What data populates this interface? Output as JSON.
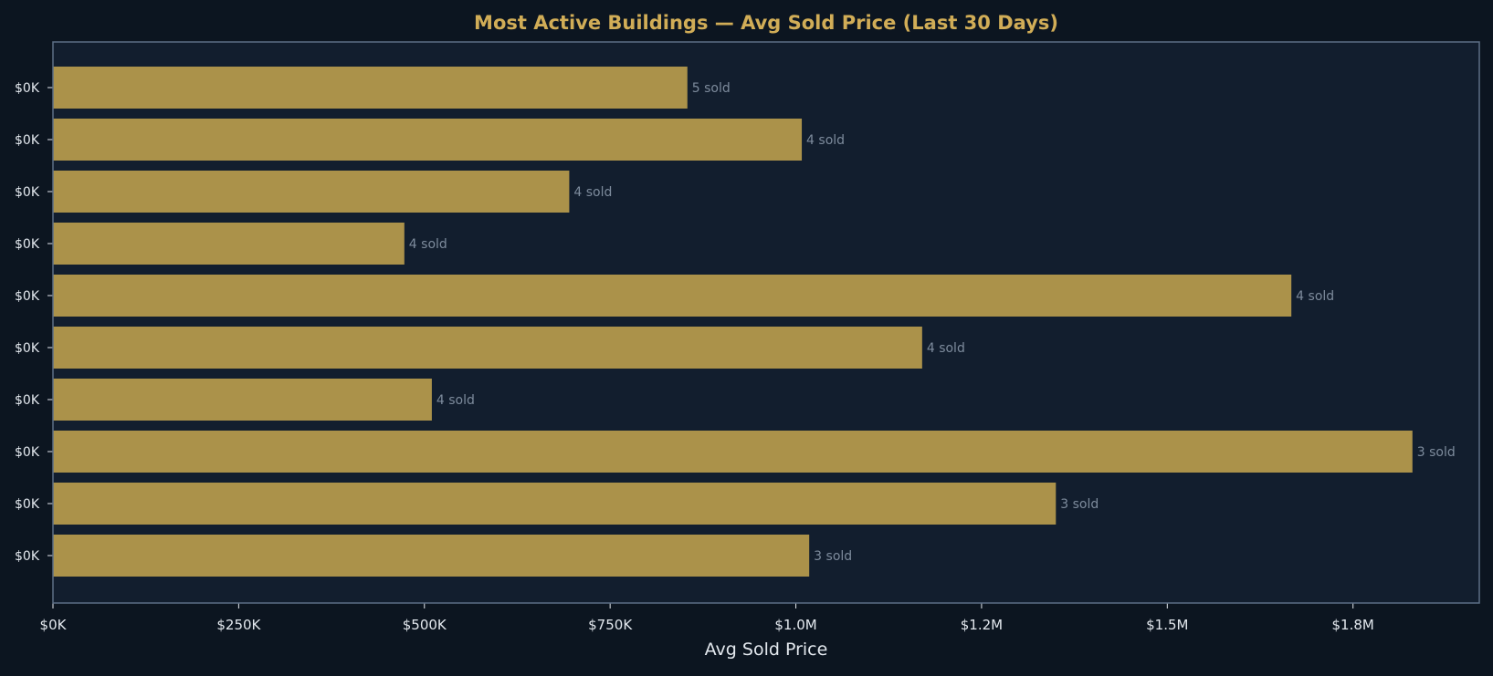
{
  "colors": {
    "background": "#0c1520",
    "plot_background": "#121e2e",
    "frame": "#5c6f86",
    "bar": "#ab924a",
    "title": "#d1ad57",
    "text": "#e3e8ee",
    "data_label": "#7d8b9c"
  },
  "chart_data": {
    "type": "bar",
    "orientation": "horizontal",
    "title": "Most Active Buildings — Avg Sold Price (Last 30 Days)",
    "xlabel": "Avg Sold Price",
    "ylabel": "",
    "categories": [
      "$0K",
      "$0K",
      "$0K",
      "$0K",
      "$0K",
      "$0K",
      "$0K",
      "$0K",
      "$0K",
      "$0K"
    ],
    "values": [
      854000,
      1008000,
      695000,
      473000,
      1667000,
      1170000,
      510000,
      1830000,
      1350000,
      1018000
    ],
    "data_labels": [
      "5 sold",
      "4 sold",
      "4 sold",
      "4 sold",
      "4 sold",
      "4 sold",
      "4 sold",
      "3 sold",
      "3 sold",
      "3 sold"
    ],
    "xticks": [
      0,
      250000,
      500000,
      750000,
      1000000,
      1250000,
      1500000,
      1750000
    ],
    "xtick_labels": [
      "$0K",
      "$250K",
      "$500K",
      "$750K",
      "$1.0M",
      "$1.2M",
      "$1.5M",
      "$1.8M"
    ],
    "xlim": [
      0,
      1920000
    ],
    "grid": false,
    "legend": "none"
  }
}
